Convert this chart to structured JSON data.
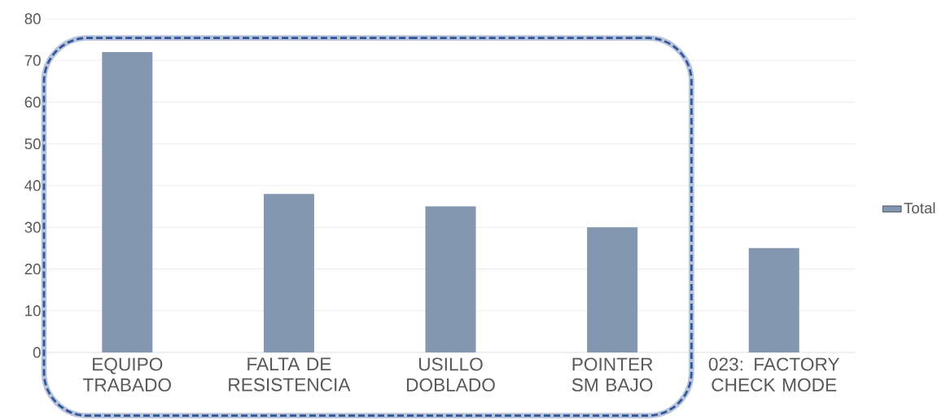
{
  "chart_data": {
    "type": "bar",
    "categories": [
      "EQUIPO TRABADO",
      "FALTA DE RESISTENCIA",
      "USILLO DOBLADO",
      "POINTER SM BAJO",
      "023: FACTORY CHECK MODE"
    ],
    "series": [
      {
        "name": "Total",
        "color": "#8497b0",
        "values": [
          72,
          38,
          35,
          30,
          25
        ]
      }
    ],
    "ylim": [
      0,
      80
    ],
    "yticks": [
      0,
      10,
      20,
      30,
      40,
      50,
      60,
      70,
      80
    ],
    "grid": "y",
    "legend": "right"
  }
}
